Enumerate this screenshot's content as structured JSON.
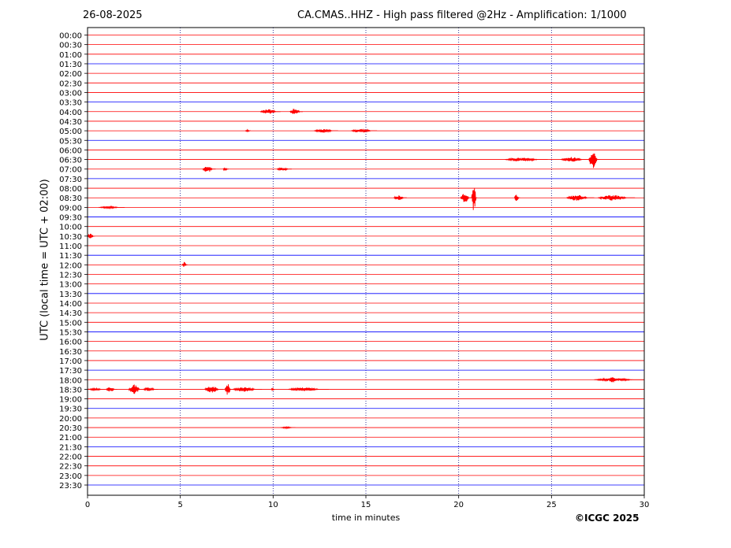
{
  "header": {
    "date": "26-08-2025",
    "title": "CA.CMAS..HHZ - High pass filtered @2Hz - Amplification: 1/1000"
  },
  "footer": {
    "copyright": "©ICGC 2025"
  },
  "colors": {
    "red_trace": "#ff0000",
    "blue_trace": "#0000ff",
    "grid": "#00007f",
    "frame": "#000000"
  },
  "chart_data": {
    "type": "line",
    "title": "CA.CMAS..HHZ - High pass filtered @2Hz - Amplification: 1/1000",
    "xlabel": "time in minutes",
    "ylabel": "UTC (local time = UTC + 02:00)",
    "xlim": [
      0,
      30
    ],
    "x_ticks": [
      0,
      5,
      10,
      15,
      20,
      25,
      30
    ],
    "vertical_gridlines_at": [
      5,
      10,
      15,
      20,
      25
    ],
    "y_ticks": [
      "00:00",
      "00:30",
      "01:00",
      "01:30",
      "02:00",
      "02:30",
      "03:00",
      "03:30",
      "04:00",
      "04:30",
      "05:00",
      "05:30",
      "06:00",
      "06:30",
      "07:00",
      "07:30",
      "08:00",
      "08:30",
      "09:00",
      "09:30",
      "10:00",
      "10:30",
      "11:00",
      "11:30",
      "12:00",
      "12:30",
      "13:00",
      "13:30",
      "14:00",
      "14:30",
      "15:00",
      "15:30",
      "16:00",
      "16:30",
      "17:00",
      "17:30",
      "18:00",
      "18:30",
      "19:00",
      "19:30",
      "20:00",
      "20:30",
      "21:00",
      "21:30",
      "22:00",
      "22:30",
      "23:00",
      "23:30"
    ],
    "trace_color_pattern": [
      "red",
      "red",
      "red",
      "blue"
    ],
    "events": [
      {
        "row": "04:00",
        "start": 9.3,
        "end": 10.4,
        "amp": 0.25
      },
      {
        "row": "04:00",
        "start": 10.9,
        "end": 11.6,
        "amp": 0.35
      },
      {
        "row": "05:00",
        "start": 12.2,
        "end": 13.5,
        "amp": 0.2
      },
      {
        "row": "05:00",
        "start": 14.2,
        "end": 15.6,
        "amp": 0.2
      },
      {
        "row": "05:00",
        "start": 8.5,
        "end": 8.8,
        "amp": 0.1
      },
      {
        "row": "06:30",
        "start": 22.5,
        "end": 24.8,
        "amp": 0.2
      },
      {
        "row": "06:30",
        "start": 25.5,
        "end": 27.0,
        "amp": 0.25
      },
      {
        "row": "06:30",
        "start": 27.0,
        "end": 27.6,
        "amp": 0.9
      },
      {
        "row": "07:00",
        "start": 6.2,
        "end": 6.9,
        "amp": 0.35
      },
      {
        "row": "07:00",
        "start": 7.3,
        "end": 7.6,
        "amp": 0.2
      },
      {
        "row": "07:00",
        "start": 10.2,
        "end": 11.0,
        "amp": 0.15
      },
      {
        "row": "08:30",
        "start": 16.5,
        "end": 17.2,
        "amp": 0.25
      },
      {
        "row": "08:30",
        "start": 20.1,
        "end": 20.7,
        "amp": 0.5
      },
      {
        "row": "08:30",
        "start": 20.7,
        "end": 21.0,
        "amp": 1.4
      },
      {
        "row": "08:30",
        "start": 23.0,
        "end": 23.3,
        "amp": 0.35
      },
      {
        "row": "08:30",
        "start": 25.8,
        "end": 27.3,
        "amp": 0.3
      },
      {
        "row": "08:30",
        "start": 27.5,
        "end": 29.5,
        "amp": 0.3
      },
      {
        "row": "09:00",
        "start": 0.6,
        "end": 2.0,
        "amp": 0.1
      },
      {
        "row": "10:30",
        "start": 0.0,
        "end": 0.4,
        "amp": 0.35
      },
      {
        "row": "12:00",
        "start": 5.1,
        "end": 5.4,
        "amp": 0.3
      },
      {
        "row": "18:00",
        "start": 27.3,
        "end": 30.0,
        "amp": 0.15
      },
      {
        "row": "18:00",
        "start": 28.1,
        "end": 28.6,
        "amp": 0.3
      },
      {
        "row": "18:30",
        "start": 0.0,
        "end": 1.0,
        "amp": 0.1
      },
      {
        "row": "18:30",
        "start": 1.0,
        "end": 1.6,
        "amp": 0.25
      },
      {
        "row": "18:30",
        "start": 2.2,
        "end": 3.0,
        "amp": 0.5
      },
      {
        "row": "18:30",
        "start": 3.0,
        "end": 3.8,
        "amp": 0.2
      },
      {
        "row": "18:30",
        "start": 6.3,
        "end": 7.3,
        "amp": 0.35
      },
      {
        "row": "18:30",
        "start": 7.4,
        "end": 7.8,
        "amp": 0.6
      },
      {
        "row": "18:30",
        "start": 7.8,
        "end": 9.4,
        "amp": 0.25
      },
      {
        "row": "18:30",
        "start": 9.9,
        "end": 10.1,
        "amp": 0.15
      },
      {
        "row": "18:30",
        "start": 10.8,
        "end": 13.0,
        "amp": 0.2
      },
      {
        "row": "20:30",
        "start": 10.4,
        "end": 11.2,
        "amp": 0.08
      }
    ]
  }
}
